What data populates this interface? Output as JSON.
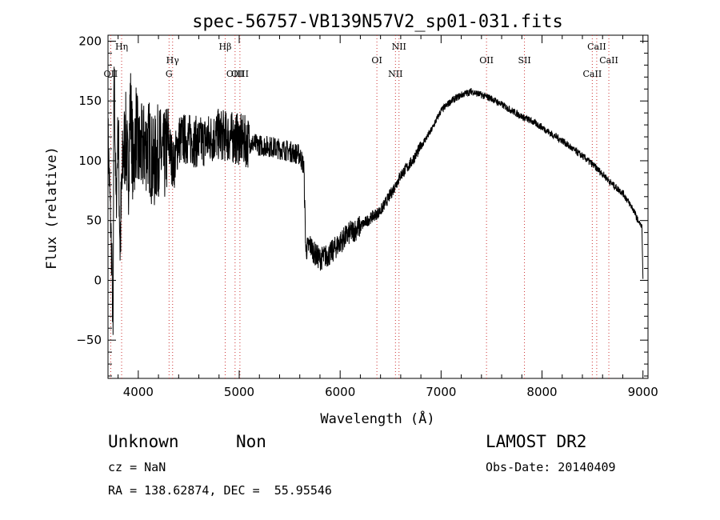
{
  "chart_data": {
    "type": "line",
    "title": "spec-56757-VB139N57V2_sp01-031.fits",
    "xlabel": "Wavelength (Å)",
    "ylabel": "Flux (relative)",
    "xlim": [
      3700,
      9050
    ],
    "ylim": [
      -82,
      205
    ],
    "xticks": [
      4000,
      5000,
      6000,
      7000,
      8000,
      9000
    ],
    "yticks": [
      -50,
      0,
      50,
      100,
      150,
      200
    ],
    "grid": false,
    "line_color": "#000000",
    "marker_color": "#cc3333",
    "series": [
      {
        "x": [
          3700,
          3740,
          3750,
          3760,
          3780,
          3800,
          3820,
          3850,
          3880,
          3900,
          3920,
          3950,
          3980,
          4000,
          4050,
          4100,
          4150,
          4200,
          4250,
          4300,
          4350,
          4400,
          4500,
          4600,
          4700,
          4800,
          4900,
          5000,
          5100,
          5200,
          5300,
          5400,
          5500,
          5600,
          5640,
          5660,
          5700,
          5750,
          5800,
          5900,
          6000,
          6100,
          6200,
          6300,
          6400,
          6500,
          6600,
          6700,
          6800,
          6900,
          7000,
          7100,
          7200,
          7300,
          7400,
          7500,
          7600,
          7700,
          7800,
          7900,
          8000,
          8100,
          8200,
          8300,
          8400,
          8500,
          8600,
          8700,
          8800,
          8900,
          8950,
          8990,
          9000
        ],
        "values": [
          120,
          10,
          -55,
          185,
          60,
          130,
          30,
          105,
          120,
          80,
          150,
          95,
          130,
          105,
          110,
          115,
          95,
          110,
          100,
          115,
          95,
          118,
          118,
          115,
          118,
          122,
          120,
          118,
          115,
          113,
          112,
          110,
          108,
          105,
          95,
          25,
          30,
          22,
          18,
          22,
          32,
          40,
          45,
          52,
          58,
          72,
          88,
          98,
          112,
          125,
          142,
          150,
          155,
          158,
          155,
          152,
          147,
          142,
          137,
          133,
          128,
          122,
          117,
          110,
          104,
          97,
          89,
          80,
          73,
          60,
          50,
          45,
          0
        ]
      }
    ],
    "lines": [
      {
        "label": "Hη",
        "x": 3835,
        "row": 0
      },
      {
        "label": "OII",
        "x": 3727,
        "row": 2
      },
      {
        "label": "Hγ",
        "x": 4340,
        "row": 1
      },
      {
        "label": "G",
        "x": 4305,
        "row": 2
      },
      {
        "label": "Hβ",
        "x": 4861,
        "row": 0
      },
      {
        "label": "OIII",
        "x": 4959,
        "row": 2
      },
      {
        "label": "OIII",
        "x": 5007,
        "row": 2
      },
      {
        "label": "OI",
        "x": 6364,
        "row": 1
      },
      {
        "label": "NII",
        "x": 6548,
        "row": 2
      },
      {
        "label": "NII",
        "x": 6583,
        "row": 0
      },
      {
        "label": "OII",
        "x": 7450,
        "row": 1
      },
      {
        "label": "SII",
        "x": 7826,
        "row": 1
      },
      {
        "label": "CaII",
        "x": 8498,
        "row": 2
      },
      {
        "label": "CaII",
        "x": 8542,
        "row": 0
      },
      {
        "label": "CaII",
        "x": 8662,
        "row": 1
      }
    ]
  },
  "footer": {
    "class_label": "Unknown",
    "subclass_label": "Non",
    "survey": "LAMOST DR2",
    "cz": "cz = NaN",
    "obs_date": "Obs-Date: 20140409",
    "coords": "RA = 138.62874, DEC =  55.95546"
  }
}
